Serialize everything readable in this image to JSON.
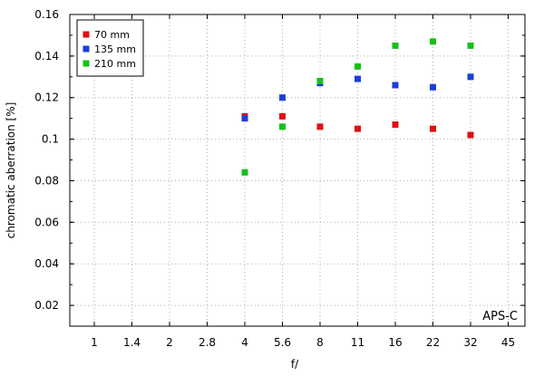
{
  "chart_data": {
    "type": "scatter",
    "title": "",
    "xlabel": "f/",
    "ylabel": "chromatic aberration [%]",
    "x_tick_labels": [
      "1",
      "1.4",
      "2",
      "2.8",
      "4",
      "5.6",
      "8",
      "11",
      "16",
      "22",
      "32",
      "45"
    ],
    "ylim": [
      0.01,
      0.16
    ],
    "y_ticks": [
      0.02,
      0.04,
      0.06,
      0.08,
      0.1,
      0.12,
      0.14,
      0.16
    ],
    "y_tick_labels": [
      "0.02",
      "0.04",
      "0.06",
      "0.08",
      "0.1",
      "0.12",
      "0.14",
      "0.16"
    ],
    "grid": true,
    "legend_position": "top-left",
    "annotation": "APS-C",
    "series": [
      {
        "name": "70 mm",
        "color": "#e01010",
        "points": [
          {
            "x": "4",
            "y": 0.111
          },
          {
            "x": "5.6",
            "y": 0.111
          },
          {
            "x": "8",
            "y": 0.106
          },
          {
            "x": "11",
            "y": 0.105
          },
          {
            "x": "16",
            "y": 0.107
          },
          {
            "x": "22",
            "y": 0.105
          },
          {
            "x": "32",
            "y": 0.102
          }
        ]
      },
      {
        "name": "135 mm",
        "color": "#1a3fd8",
        "points": [
          {
            "x": "4",
            "y": 0.11
          },
          {
            "x": "5.6",
            "y": 0.12
          },
          {
            "x": "8",
            "y": 0.127
          },
          {
            "x": "11",
            "y": 0.129
          },
          {
            "x": "16",
            "y": 0.126
          },
          {
            "x": "22",
            "y": 0.125
          },
          {
            "x": "32",
            "y": 0.13
          }
        ]
      },
      {
        "name": "210 mm",
        "color": "#18c018",
        "points": [
          {
            "x": "4",
            "y": 0.084
          },
          {
            "x": "5.6",
            "y": 0.106
          },
          {
            "x": "8",
            "y": 0.128
          },
          {
            "x": "11",
            "y": 0.135
          },
          {
            "x": "16",
            "y": 0.145
          },
          {
            "x": "22",
            "y": 0.147
          },
          {
            "x": "32",
            "y": 0.145
          }
        ]
      }
    ]
  }
}
